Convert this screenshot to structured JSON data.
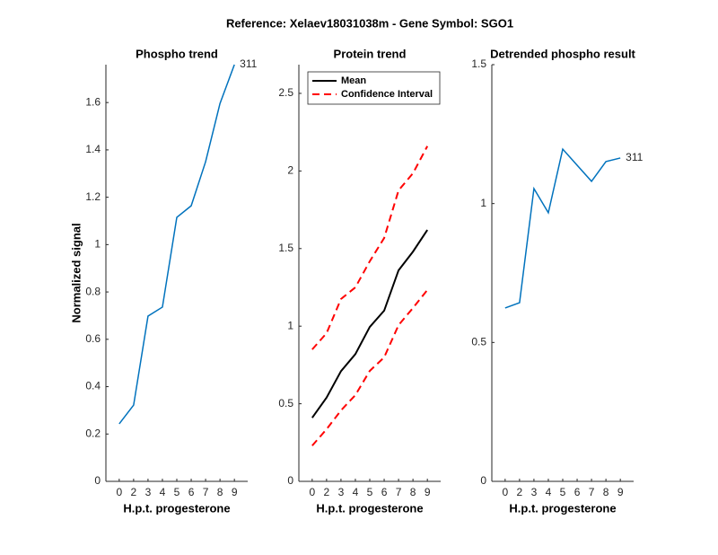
{
  "title": "Reference:  Xelaev18031038m - Gene Symbol:  SGO1",
  "chart_data": [
    {
      "type": "line",
      "title": "Phospho trend",
      "xlabel": "H.p.t. progesterone",
      "ylabel": "Normalized signal",
      "categories": [
        "0",
        "2",
        "3",
        "4",
        "5",
        "6",
        "7",
        "8",
        "9"
      ],
      "series": [
        {
          "color": "#0072bd",
          "values": [
            0.243,
            0.322,
            0.698,
            0.736,
            1.115,
            1.164,
            1.35,
            1.596,
            1.76
          ]
        }
      ],
      "ylim": [
        0,
        1.76
      ],
      "yticks": [
        0,
        0.2,
        0.4,
        0.6,
        0.8,
        1,
        1.2,
        1.4,
        1.6
      ],
      "annotation": "311"
    },
    {
      "type": "line",
      "title": "Protein trend",
      "xlabel": "H.p.t. progesterone",
      "categories": [
        "0",
        "2",
        "3",
        "4",
        "5",
        "6",
        "7",
        "8",
        "9"
      ],
      "series": [
        {
          "name": "Mean",
          "color": "#000000",
          "dash": false,
          "values": [
            0.41,
            0.54,
            0.71,
            0.82,
            0.995,
            1.1,
            1.36,
            1.48,
            1.62
          ]
        },
        {
          "name": "Confidence Interval",
          "color": "#ff0000",
          "dash": true,
          "values": [
            0.85,
            0.955,
            1.175,
            1.25,
            1.418,
            1.568,
            1.875,
            1.985,
            2.16
          ]
        },
        {
          "color": "#ff0000",
          "dash": true,
          "values": [
            0.23,
            0.336,
            0.457,
            0.556,
            0.712,
            0.799,
            1.007,
            1.117,
            1.233
          ]
        }
      ],
      "ylim": [
        0,
        2.685
      ],
      "yticks": [
        0,
        0.5,
        1,
        1.5,
        2,
        2.5
      ],
      "legend": "upper left"
    },
    {
      "type": "line",
      "title": "Detrended phospho result",
      "xlabel": "H.p.t. progesterone",
      "categories": [
        "0",
        "2",
        "3",
        "4",
        "5",
        "6",
        "7",
        "8",
        "9"
      ],
      "series": [
        {
          "color": "#0072bd",
          "values": [
            0.624,
            0.643,
            1.054,
            0.967,
            1.196,
            1.138,
            1.08,
            1.151,
            1.164
          ]
        }
      ],
      "ylim": [
        0,
        1.5
      ],
      "yticks": [
        0,
        0.5,
        1,
        1.5
      ],
      "annotation": "311"
    }
  ]
}
